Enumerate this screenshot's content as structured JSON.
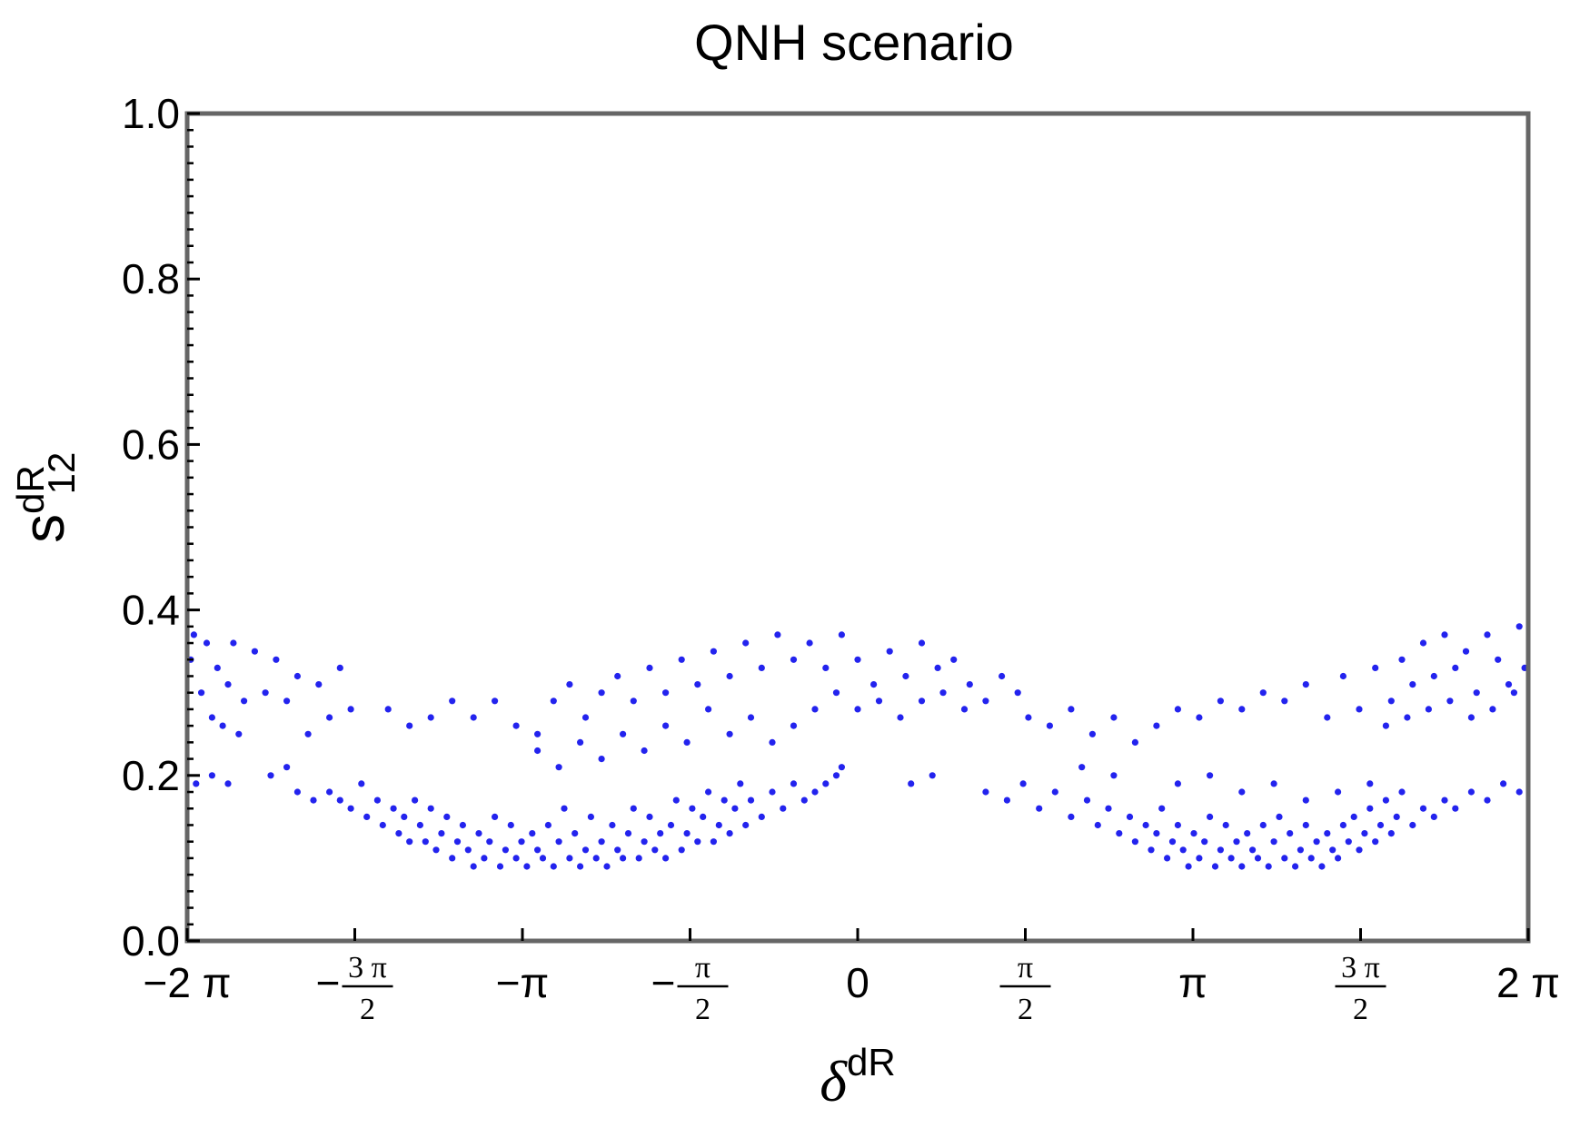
{
  "chart_data": {
    "type": "scatter",
    "title": "QNH scenario",
    "xlabel": {
      "base": "δ",
      "sup": "dR"
    },
    "ylabel": {
      "base": "s",
      "sup": "dR",
      "sub": "12"
    },
    "xlim": [
      -6.2832,
      6.2832
    ],
    "ylim": [
      0.0,
      1.0
    ],
    "xticks": [
      {
        "value": -6.2832,
        "label": "−2 π"
      },
      {
        "value": -4.7124,
        "label": "−",
        "num": "3 π",
        "den": "2"
      },
      {
        "value": -3.1416,
        "label": "−π"
      },
      {
        "value": -1.5708,
        "label": "−",
        "num": "π",
        "den": "2"
      },
      {
        "value": 0,
        "label": "0"
      },
      {
        "value": 1.5708,
        "label": "",
        "num": "π",
        "den": "2"
      },
      {
        "value": 3.1416,
        "label": "π"
      },
      {
        "value": 4.7124,
        "label": "",
        "num": "3 π",
        "den": "2"
      },
      {
        "value": 6.2832,
        "label": "2 π"
      }
    ],
    "yticks": [
      {
        "value": 0.0,
        "label": "0.0"
      },
      {
        "value": 0.2,
        "label": "0.2"
      },
      {
        "value": 0.4,
        "label": "0.4"
      },
      {
        "value": 0.6,
        "label": "0.6"
      },
      {
        "value": 0.8,
        "label": "0.8"
      },
      {
        "value": 1.0,
        "label": "1.0"
      }
    ],
    "grid": false,
    "point_color": "#2323ee",
    "frame_color": "#666666",
    "series": [
      {
        "points": [
          [
            -6.25,
            0.34
          ],
          [
            -6.22,
            0.37
          ],
          [
            -6.15,
            0.3
          ],
          [
            -6.1,
            0.36
          ],
          [
            -6.05,
            0.27
          ],
          [
            -6.0,
            0.33
          ],
          [
            -5.95,
            0.26
          ],
          [
            -5.9,
            0.31
          ],
          [
            -5.85,
            0.36
          ],
          [
            -5.8,
            0.25
          ],
          [
            -5.75,
            0.29
          ],
          [
            -5.65,
            0.35
          ],
          [
            -5.55,
            0.3
          ],
          [
            -5.45,
            0.34
          ],
          [
            -5.35,
            0.29
          ],
          [
            -5.25,
            0.32
          ],
          [
            -5.15,
            0.25
          ],
          [
            -5.05,
            0.31
          ],
          [
            -4.95,
            0.27
          ],
          [
            -4.85,
            0.33
          ],
          [
            -4.75,
            0.28
          ],
          [
            -6.2,
            0.19
          ],
          [
            -6.05,
            0.2
          ],
          [
            -5.9,
            0.19
          ],
          [
            -5.5,
            0.2
          ],
          [
            -5.35,
            0.21
          ],
          [
            -5.25,
            0.18
          ],
          [
            -5.1,
            0.17
          ],
          [
            -4.95,
            0.18
          ],
          [
            -4.85,
            0.17
          ],
          [
            -4.75,
            0.16
          ],
          [
            -4.65,
            0.19
          ],
          [
            -4.6,
            0.15
          ],
          [
            -4.5,
            0.17
          ],
          [
            -4.45,
            0.14
          ],
          [
            -4.35,
            0.16
          ],
          [
            -4.3,
            0.13
          ],
          [
            -4.25,
            0.15
          ],
          [
            -4.2,
            0.12
          ],
          [
            -4.15,
            0.17
          ],
          [
            -4.1,
            0.14
          ],
          [
            -4.05,
            0.12
          ],
          [
            -4.0,
            0.16
          ],
          [
            -3.95,
            0.11
          ],
          [
            -3.9,
            0.13
          ],
          [
            -3.85,
            0.15
          ],
          [
            -3.8,
            0.1
          ],
          [
            -3.75,
            0.12
          ],
          [
            -3.7,
            0.14
          ],
          [
            -3.65,
            0.11
          ],
          [
            -3.6,
            0.09
          ],
          [
            -3.55,
            0.13
          ],
          [
            -3.5,
            0.1
          ],
          [
            -3.45,
            0.12
          ],
          [
            -3.4,
            0.15
          ],
          [
            -3.35,
            0.09
          ],
          [
            -3.3,
            0.11
          ],
          [
            -3.25,
            0.14
          ],
          [
            -3.2,
            0.1
          ],
          [
            -3.15,
            0.12
          ],
          [
            -3.1,
            0.09
          ],
          [
            -3.05,
            0.13
          ],
          [
            -3.0,
            0.11
          ],
          [
            -2.95,
            0.1
          ],
          [
            -2.9,
            0.14
          ],
          [
            -2.85,
            0.09
          ],
          [
            -2.8,
            0.12
          ],
          [
            -2.75,
            0.16
          ],
          [
            -2.7,
            0.1
          ],
          [
            -2.65,
            0.13
          ],
          [
            -2.6,
            0.09
          ],
          [
            -2.55,
            0.11
          ],
          [
            -2.5,
            0.15
          ],
          [
            -2.45,
            0.1
          ],
          [
            -2.4,
            0.12
          ],
          [
            -2.35,
            0.09
          ],
          [
            -2.3,
            0.14
          ],
          [
            -2.25,
            0.11
          ],
          [
            -2.2,
            0.1
          ],
          [
            -2.15,
            0.13
          ],
          [
            -2.1,
            0.16
          ],
          [
            -2.05,
            0.1
          ],
          [
            -2.0,
            0.12
          ],
          [
            -1.95,
            0.15
          ],
          [
            -1.9,
            0.11
          ],
          [
            -1.85,
            0.13
          ],
          [
            -1.8,
            0.1
          ],
          [
            -1.75,
            0.14
          ],
          [
            -1.7,
            0.17
          ],
          [
            -1.65,
            0.11
          ],
          [
            -1.6,
            0.13
          ],
          [
            -1.55,
            0.16
          ],
          [
            -1.5,
            0.12
          ],
          [
            -1.45,
            0.15
          ],
          [
            -1.4,
            0.18
          ],
          [
            -1.35,
            0.12
          ],
          [
            -1.3,
            0.14
          ],
          [
            -1.25,
            0.17
          ],
          [
            -1.2,
            0.13
          ],
          [
            -1.15,
            0.16
          ],
          [
            -1.1,
            0.19
          ],
          [
            -1.05,
            0.14
          ],
          [
            -1.0,
            0.17
          ],
          [
            -0.9,
            0.15
          ],
          [
            -0.8,
            0.18
          ],
          [
            -0.7,
            0.16
          ],
          [
            -0.6,
            0.19
          ],
          [
            -0.5,
            0.17
          ],
          [
            -0.4,
            0.18
          ],
          [
            -0.3,
            0.19
          ],
          [
            -0.2,
            0.2
          ],
          [
            -0.15,
            0.21
          ],
          [
            -4.4,
            0.28
          ],
          [
            -4.2,
            0.26
          ],
          [
            -4.0,
            0.27
          ],
          [
            -3.8,
            0.29
          ],
          [
            -3.6,
            0.27
          ],
          [
            -3.4,
            0.29
          ],
          [
            -3.2,
            0.26
          ],
          [
            -3.0,
            0.25
          ],
          [
            -2.85,
            0.29
          ],
          [
            -2.7,
            0.31
          ],
          [
            -2.55,
            0.27
          ],
          [
            -2.4,
            0.3
          ],
          [
            -2.25,
            0.32
          ],
          [
            -2.1,
            0.29
          ],
          [
            -1.95,
            0.33
          ],
          [
            -1.8,
            0.3
          ],
          [
            -1.65,
            0.34
          ],
          [
            -1.5,
            0.31
          ],
          [
            -1.35,
            0.35
          ],
          [
            -1.2,
            0.32
          ],
          [
            -1.05,
            0.36
          ],
          [
            -0.9,
            0.33
          ],
          [
            -0.75,
            0.37
          ],
          [
            -0.6,
            0.34
          ],
          [
            -0.45,
            0.36
          ],
          [
            -0.3,
            0.33
          ],
          [
            -0.15,
            0.37
          ],
          [
            0.0,
            0.34
          ],
          [
            0.15,
            0.31
          ],
          [
            0.3,
            0.35
          ],
          [
            0.45,
            0.32
          ],
          [
            0.6,
            0.36
          ],
          [
            0.75,
            0.33
          ],
          [
            0.9,
            0.34
          ],
          [
            1.05,
            0.31
          ],
          [
            1.2,
            0.29
          ],
          [
            1.35,
            0.32
          ],
          [
            1.5,
            0.3
          ],
          [
            1.0,
            0.28
          ],
          [
            0.8,
            0.3
          ],
          [
            0.6,
            0.29
          ],
          [
            0.4,
            0.27
          ],
          [
            0.2,
            0.29
          ],
          [
            0.0,
            0.28
          ],
          [
            -0.2,
            0.3
          ],
          [
            -0.4,
            0.28
          ],
          [
            -0.6,
            0.26
          ],
          [
            -0.8,
            0.24
          ],
          [
            -1.0,
            0.27
          ],
          [
            -1.2,
            0.25
          ],
          [
            -1.4,
            0.28
          ],
          [
            -1.6,
            0.24
          ],
          [
            -1.8,
            0.26
          ],
          [
            -2.0,
            0.23
          ],
          [
            -2.2,
            0.25
          ],
          [
            -2.4,
            0.22
          ],
          [
            -2.6,
            0.24
          ],
          [
            -2.8,
            0.21
          ],
          [
            -3.0,
            0.23
          ],
          [
            0.5,
            0.19
          ],
          [
            0.7,
            0.2
          ],
          [
            1.2,
            0.18
          ],
          [
            1.4,
            0.17
          ],
          [
            1.55,
            0.19
          ],
          [
            1.7,
            0.16
          ],
          [
            1.85,
            0.18
          ],
          [
            2.0,
            0.15
          ],
          [
            2.15,
            0.17
          ],
          [
            2.25,
            0.14
          ],
          [
            2.35,
            0.16
          ],
          [
            2.45,
            0.13
          ],
          [
            2.55,
            0.15
          ],
          [
            2.6,
            0.12
          ],
          [
            2.7,
            0.14
          ],
          [
            2.75,
            0.11
          ],
          [
            2.8,
            0.13
          ],
          [
            2.85,
            0.16
          ],
          [
            2.9,
            0.1
          ],
          [
            2.95,
            0.12
          ],
          [
            3.0,
            0.14
          ],
          [
            3.05,
            0.11
          ],
          [
            3.1,
            0.09
          ],
          [
            3.15,
            0.13
          ],
          [
            3.2,
            0.1
          ],
          [
            3.25,
            0.12
          ],
          [
            3.3,
            0.15
          ],
          [
            3.35,
            0.09
          ],
          [
            3.4,
            0.11
          ],
          [
            3.45,
            0.14
          ],
          [
            3.5,
            0.1
          ],
          [
            3.55,
            0.12
          ],
          [
            3.6,
            0.09
          ],
          [
            3.65,
            0.13
          ],
          [
            3.7,
            0.11
          ],
          [
            3.75,
            0.1
          ],
          [
            3.8,
            0.14
          ],
          [
            3.85,
            0.09
          ],
          [
            3.9,
            0.12
          ],
          [
            3.95,
            0.15
          ],
          [
            4.0,
            0.1
          ],
          [
            4.05,
            0.13
          ],
          [
            4.1,
            0.09
          ],
          [
            4.15,
            0.11
          ],
          [
            4.2,
            0.14
          ],
          [
            4.25,
            0.1
          ],
          [
            4.3,
            0.12
          ],
          [
            4.35,
            0.09
          ],
          [
            4.4,
            0.13
          ],
          [
            4.45,
            0.11
          ],
          [
            4.5,
            0.1
          ],
          [
            4.55,
            0.14
          ],
          [
            4.6,
            0.12
          ],
          [
            4.65,
            0.15
          ],
          [
            4.7,
            0.11
          ],
          [
            4.75,
            0.13
          ],
          [
            4.8,
            0.16
          ],
          [
            4.85,
            0.12
          ],
          [
            4.9,
            0.14
          ],
          [
            4.95,
            0.17
          ],
          [
            5.0,
            0.13
          ],
          [
            5.05,
            0.15
          ],
          [
            5.1,
            0.18
          ],
          [
            5.2,
            0.14
          ],
          [
            5.3,
            0.16
          ],
          [
            5.4,
            0.15
          ],
          [
            5.5,
            0.17
          ],
          [
            5.6,
            0.16
          ],
          [
            5.75,
            0.18
          ],
          [
            5.9,
            0.17
          ],
          [
            6.05,
            0.19
          ],
          [
            6.2,
            0.18
          ],
          [
            3.0,
            0.19
          ],
          [
            3.3,
            0.2
          ],
          [
            3.6,
            0.18
          ],
          [
            3.9,
            0.19
          ],
          [
            4.2,
            0.17
          ],
          [
            4.5,
            0.18
          ],
          [
            4.8,
            0.19
          ],
          [
            2.4,
            0.2
          ],
          [
            2.1,
            0.21
          ],
          [
            1.6,
            0.27
          ],
          [
            1.8,
            0.26
          ],
          [
            2.0,
            0.28
          ],
          [
            2.2,
            0.25
          ],
          [
            2.4,
            0.27
          ],
          [
            2.6,
            0.24
          ],
          [
            2.8,
            0.26
          ],
          [
            3.0,
            0.28
          ],
          [
            3.2,
            0.27
          ],
          [
            3.4,
            0.29
          ],
          [
            3.6,
            0.28
          ],
          [
            3.8,
            0.3
          ],
          [
            4.0,
            0.29
          ],
          [
            4.2,
            0.31
          ],
          [
            4.4,
            0.27
          ],
          [
            4.55,
            0.32
          ],
          [
            4.7,
            0.28
          ],
          [
            4.85,
            0.33
          ],
          [
            5.0,
            0.29
          ],
          [
            5.1,
            0.34
          ],
          [
            5.2,
            0.31
          ],
          [
            5.3,
            0.36
          ],
          [
            5.4,
            0.32
          ],
          [
            5.5,
            0.37
          ],
          [
            5.6,
            0.33
          ],
          [
            5.7,
            0.35
          ],
          [
            5.8,
            0.3
          ],
          [
            5.9,
            0.37
          ],
          [
            6.0,
            0.34
          ],
          [
            6.1,
            0.31
          ],
          [
            6.2,
            0.38
          ],
          [
            6.25,
            0.33
          ],
          [
            5.55,
            0.29
          ],
          [
            5.75,
            0.27
          ],
          [
            5.95,
            0.28
          ],
          [
            6.15,
            0.3
          ],
          [
            5.35,
            0.28
          ],
          [
            5.15,
            0.27
          ],
          [
            4.95,
            0.26
          ]
        ]
      }
    ]
  }
}
